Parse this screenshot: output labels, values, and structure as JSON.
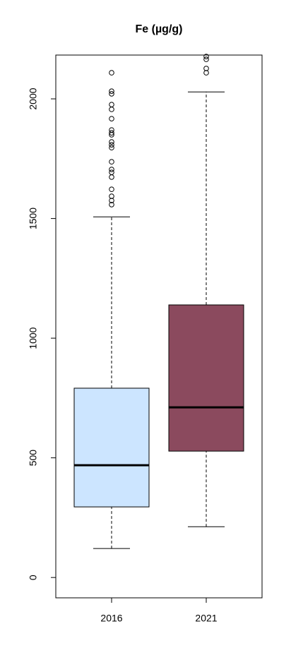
{
  "chart_data": {
    "type": "boxplot",
    "title": "Fe (µg/g)",
    "categories": [
      "2016",
      "2021"
    ],
    "boxes": [
      {
        "color": "#cce5ff",
        "min": 121,
        "q1": 295,
        "median": 469,
        "q3": 791,
        "max": 1507,
        "outliers": [
          2109,
          2032,
          2021,
          1976,
          1956,
          1917,
          1870,
          1858,
          1850,
          1820,
          1808,
          1796,
          1737,
          1705,
          1693,
          1673,
          1622,
          1593,
          1575,
          1558
        ]
      },
      {
        "color": "#8b4a5e",
        "min": 212,
        "q1": 528,
        "median": 711,
        "q3": 1139,
        "max": 2029,
        "outliers": [
          2177,
          2165,
          2127,
          2109
        ]
      }
    ],
    "ylim": [
      -85,
      2183
    ],
    "yticks": [
      0,
      500,
      1000,
      1500,
      2000
    ],
    "grid": false
  }
}
